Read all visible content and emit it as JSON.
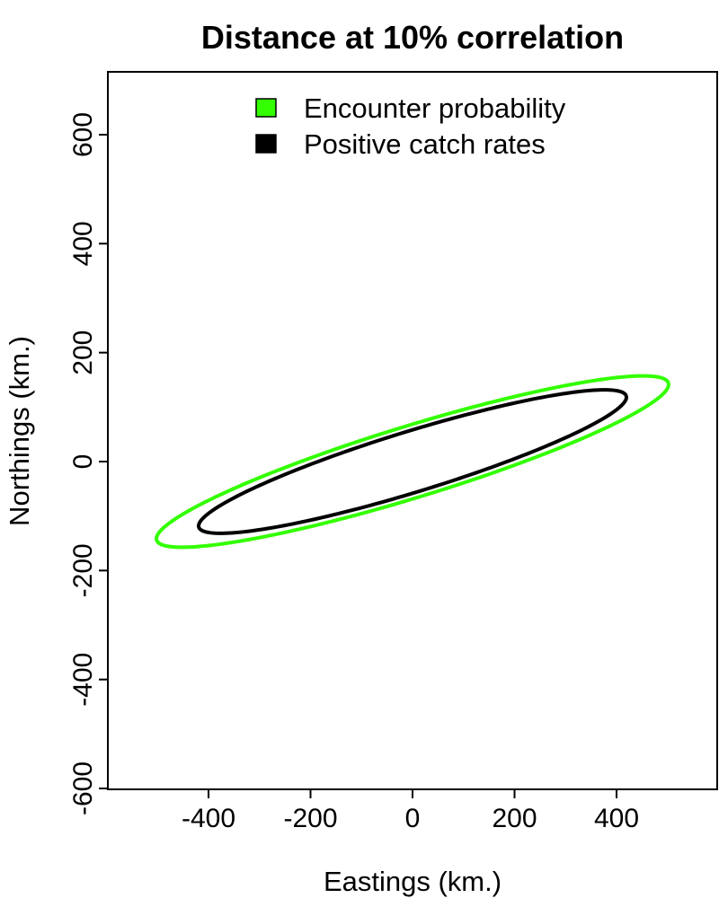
{
  "chart_data": {
    "type": "line",
    "title": "Distance at 10% correlation",
    "xlabel": "Eastings (km.)",
    "ylabel": "Northings (km.)",
    "xlim": [
      -600,
      600
    ],
    "ylim": [
      -600,
      600
    ],
    "x_ticks": [
      -400,
      -200,
      0,
      200,
      400
    ],
    "x_tick_labels": [
      "-400",
      "-200",
      "0",
      "200",
      "400"
    ],
    "y_ticks": [
      -600,
      -400,
      -200,
      0,
      200,
      400,
      600
    ],
    "y_tick_labels": [
      "-600",
      "-400",
      "-200",
      "0",
      "200",
      "400",
      "600"
    ],
    "grid": false,
    "legend_position": "top",
    "series": [
      {
        "name": "Encounter probability",
        "color": "#33ff00",
        "shape": "ellipse",
        "center": [
          0,
          0
        ],
        "semi_major_km": 522,
        "semi_minor_km": 66,
        "rotation_deg": 16,
        "x_range": [
          -505,
          505
        ],
        "y_range": [
          -137,
          137
        ]
      },
      {
        "name": "Positive catch rates",
        "color": "#000000",
        "shape": "ellipse",
        "center": [
          0,
          0
        ],
        "semi_major_km": 436,
        "semi_minor_km": 56,
        "rotation_deg": 16,
        "x_range": [
          -422,
          422
        ],
        "y_range": [
          -115,
          115
        ]
      }
    ]
  }
}
